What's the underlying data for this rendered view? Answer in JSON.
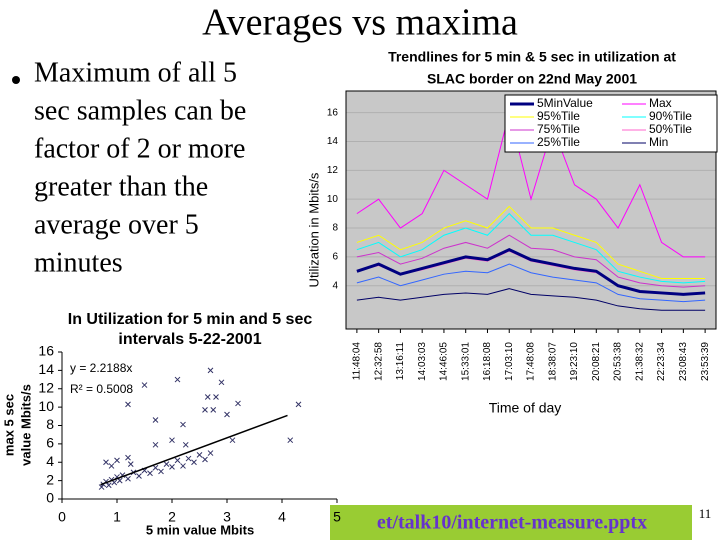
{
  "slide": {
    "title": "Averages vs maxima",
    "bullet": [
      "Maximum of all 5",
      "sec samples can be",
      "factor of 2 or more",
      "greater than the",
      "average over 5",
      "minutes"
    ],
    "footer": "et/talk10/internet-measure.pptx",
    "page_number": "11"
  },
  "chart_data": [
    {
      "type": "line",
      "title": [
        "Trendlines for 5 min & 5 sec in utilization at",
        "SLAC border on 22nd  May 2001"
      ],
      "y_label": "Utilization in Mbits/s",
      "x_label": "Time of day",
      "categories": [
        "11:48:04",
        "12:32:58",
        "13:16:11",
        "14:03:03",
        "14:46:05",
        "15:33:01",
        "16:18:08",
        "17:03:10",
        "17:48:08",
        "18:38:07",
        "19:23:10",
        "20:08:21",
        "20:53:38",
        "21:38:32",
        "22:23:34",
        "23:08:43",
        "23:53:39"
      ],
      "ylim": [
        1,
        17.5
      ],
      "yticks": [
        4,
        6,
        8,
        10,
        12,
        14,
        16
      ],
      "grid": true,
      "series": [
        {
          "name": "5MinValue",
          "color": "#000080",
          "width": 3,
          "values": [
            5,
            5.5,
            4.8,
            5.2,
            5.6,
            6,
            5.8,
            6.5,
            5.8,
            5.5,
            5.2,
            5,
            4,
            3.6,
            3.5,
            3.4,
            3.5
          ]
        },
        {
          "name": "95%Tile",
          "color": "#ffff00",
          "width": 1,
          "values": [
            7,
            7.5,
            6.5,
            7,
            8,
            8.5,
            8,
            9.5,
            8,
            8,
            7.5,
            7,
            5.5,
            5,
            4.5,
            4.5,
            4.5
          ]
        },
        {
          "name": "75%Tile",
          "color": "#cc33cc",
          "width": 1,
          "values": [
            6,
            6.3,
            5.5,
            5.9,
            6.6,
            7,
            6.6,
            7.5,
            6.6,
            6.5,
            6,
            5.8,
            4.6,
            4.2,
            4,
            3.9,
            4
          ]
        },
        {
          "name": "25%Tile",
          "color": "#3366ff",
          "width": 1,
          "values": [
            4.2,
            4.6,
            4,
            4.4,
            4.8,
            5,
            4.9,
            5.5,
            4.9,
            4.6,
            4.4,
            4.2,
            3.4,
            3.1,
            3,
            2.9,
            3
          ]
        },
        {
          "name": "Max",
          "color": "#ff00ff",
          "width": 1,
          "values": [
            9,
            10,
            8,
            9,
            12,
            11,
            10,
            16,
            10,
            15,
            11,
            10,
            8,
            11,
            7,
            6,
            6
          ]
        },
        {
          "name": "90%Tile",
          "color": "#00ffff",
          "width": 1,
          "values": [
            6.5,
            7,
            6,
            6.5,
            7.5,
            8,
            7.5,
            9,
            7.5,
            7.5,
            7,
            6.5,
            5,
            4.6,
            4.3,
            4.2,
            4.3
          ]
        },
        {
          "name": "50%Tile",
          "color": "#ff66cc",
          "width": 1,
          "values": [
            5,
            5.4,
            4.8,
            5.1,
            5.5,
            5.9,
            5.7,
            6.4,
            5.7,
            5.4,
            5.1,
            4.9,
            4,
            3.6,
            3.5,
            3.4,
            3.5
          ]
        },
        {
          "name": "Min",
          "color": "#000066",
          "width": 1,
          "values": [
            3,
            3.2,
            3,
            3.2,
            3.4,
            3.5,
            3.4,
            3.8,
            3.4,
            3.3,
            3.2,
            3,
            2.6,
            2.4,
            2.3,
            2.3,
            2.3
          ]
        }
      ]
    },
    {
      "type": "scatter",
      "title": [
        "In Utilization for 5 min and 5 sec",
        "intervals 5-22-2001"
      ],
      "x_label": "5 min value Mbits",
      "y_label": [
        "max 5 sec",
        "value Mbits/s"
      ],
      "annotations": [
        "y = 2.2188x",
        "R² = 0.5008"
      ],
      "trendline_slope": 2.2188,
      "trendline_x": [
        0.7,
        4.1
      ],
      "xlim": [
        0,
        5
      ],
      "xticks": [
        0,
        1,
        2,
        3,
        4,
        5
      ],
      "ylim": [
        0,
        16
      ],
      "yticks": [
        0,
        2,
        4,
        6,
        8,
        10,
        12,
        14,
        16
      ],
      "color": "#333366",
      "x": [
        2.1,
        2.9,
        2.7,
        1.5,
        1.2,
        2.65,
        2.8,
        2.6,
        2.75,
        3.2,
        4.3,
        3.0,
        1.7,
        2.2,
        2.25,
        1.7,
        3.1,
        4.15,
        2.0,
        0.72,
        0.75,
        0.8,
        0.85,
        0.9,
        0.95,
        1.0,
        1.05,
        1.1,
        1.2,
        1.3,
        1.4,
        1.5,
        1.6,
        1.7,
        1.8,
        1.9,
        2.0,
        2.1,
        2.2,
        2.3,
        2.4,
        2.5,
        2.6,
        2.7,
        0.8,
        0.9,
        1.2,
        1.25,
        1.0
      ],
      "values": [
        13,
        12.7,
        14,
        12.4,
        10.3,
        11.1,
        11.1,
        9.7,
        9.7,
        10.4,
        10.3,
        9.2,
        8.6,
        8.1,
        5.9,
        5.9,
        6.4,
        6.4,
        6.4,
        1.3,
        1.6,
        1.9,
        1.5,
        2.1,
        1.8,
        2.4,
        2.0,
        2.6,
        2.2,
        2.9,
        2.5,
        3.1,
        2.8,
        3.4,
        3.0,
        3.8,
        3.5,
        4.2,
        3.6,
        4.4,
        4.0,
        4.8,
        4.3,
        5.0,
        4.0,
        3.6,
        4.5,
        3.8,
        4.2
      ]
    }
  ]
}
